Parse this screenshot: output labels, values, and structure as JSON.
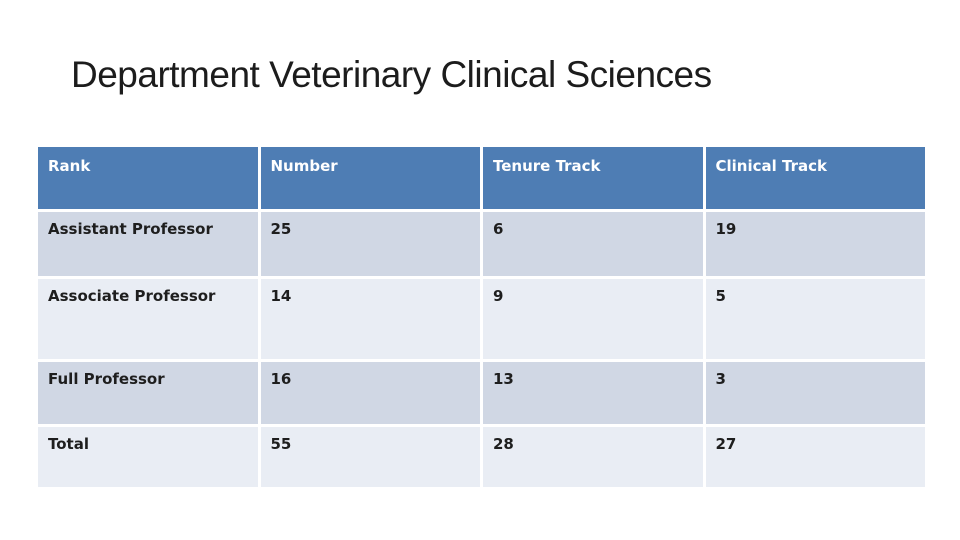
{
  "slide": {
    "title": "Department Veterinary Clinical Sciences"
  },
  "table": {
    "columns": [
      "Rank",
      "Number",
      "Tenure Track",
      "Clinical Track"
    ],
    "rows": [
      {
        "cells": [
          "Assistant Professor",
          "25",
          "6",
          "19"
        ]
      },
      {
        "cells": [
          "Associate Professor",
          "14",
          "9",
          "5"
        ]
      },
      {
        "cells": [
          "Full Professor",
          "16",
          "13",
          "3"
        ]
      },
      {
        "cells": [
          "Total",
          "55",
          "28",
          "27"
        ]
      }
    ]
  },
  "colors": {
    "background": "#FFFFFF",
    "title_text": "#1C1C1C",
    "header_bg": "#4E7DB4",
    "header_text": "#FFFFFF",
    "row_dark": "#D0D7E4",
    "row_light": "#E9EDF4",
    "body_text": "#1E1E1E"
  }
}
